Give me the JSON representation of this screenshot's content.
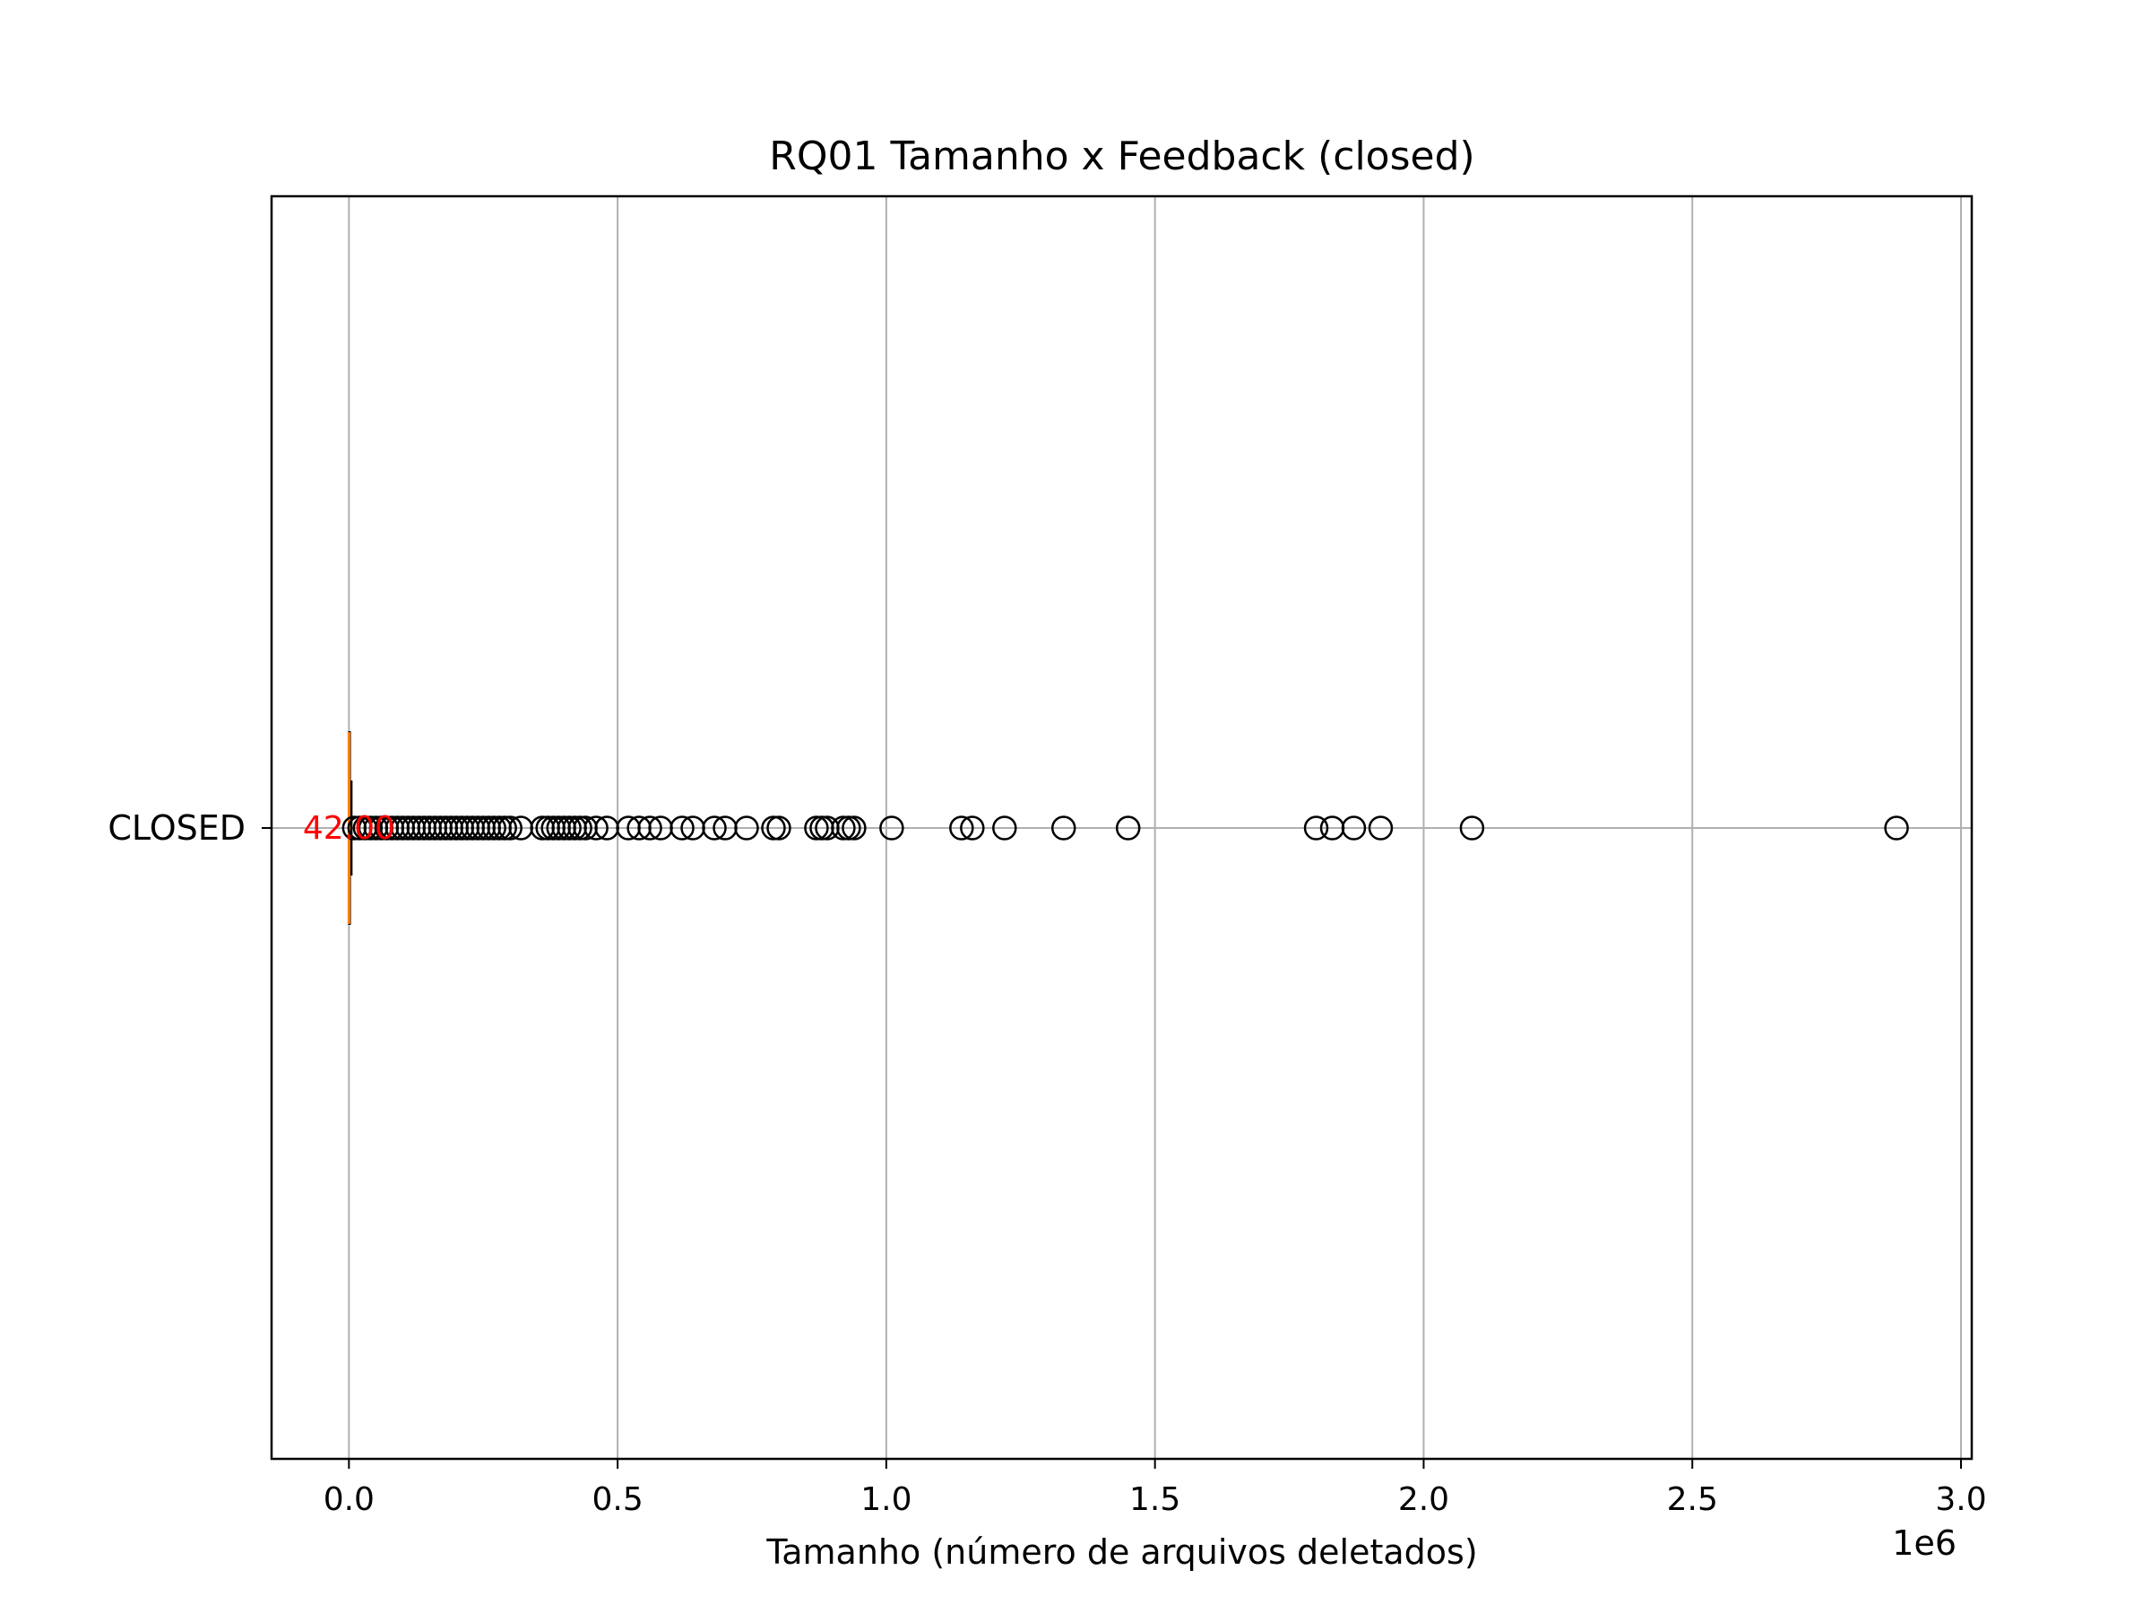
{
  "chart_data": {
    "type": "boxplot",
    "orientation": "horizontal",
    "title": "RQ01 Tamanho x Feedback (closed)",
    "xlabel": "Tamanho (número de arquivos deletados)",
    "ylabel": "",
    "x_offset_label": "1e6",
    "xlim": [
      -144000,
      3020000
    ],
    "x_ticks": [
      0,
      500000,
      1000000,
      1500000,
      2000000,
      2500000,
      3000000
    ],
    "x_tick_labels": [
      "0.0",
      "0.5",
      "1.0",
      "1.5",
      "2.0",
      "2.5",
      "3.0"
    ],
    "grid": true,
    "categories": [
      "CLOSED"
    ],
    "series": [
      {
        "median": 42,
        "median_label": "42.00",
        "q1": 0,
        "q3": 2000,
        "whisker_low": 0,
        "whisker_high": 5000,
        "outliers": [
          10000,
          20000,
          30000,
          40000,
          50000,
          60000,
          70000,
          80000,
          90000,
          100000,
          110000,
          120000,
          130000,
          140000,
          150000,
          160000,
          170000,
          180000,
          190000,
          200000,
          210000,
          220000,
          230000,
          240000,
          250000,
          260000,
          270000,
          280000,
          290000,
          300000,
          320000,
          360000,
          370000,
          380000,
          390000,
          400000,
          410000,
          420000,
          430000,
          440000,
          460000,
          480000,
          520000,
          540000,
          560000,
          580000,
          620000,
          640000,
          680000,
          700000,
          740000,
          790000,
          800000,
          870000,
          880000,
          890000,
          920000,
          930000,
          940000,
          1010000,
          1140000,
          1160000,
          1220000,
          1330000,
          1450000,
          1800000,
          1830000,
          1870000,
          1920000,
          2090000,
          2880000
        ]
      }
    ],
    "colors": {
      "median": "#ff7f0e",
      "median_label": "#ff0000",
      "outlier": "#000000",
      "grid": "#b0b0b0",
      "axes": "#000000"
    }
  }
}
